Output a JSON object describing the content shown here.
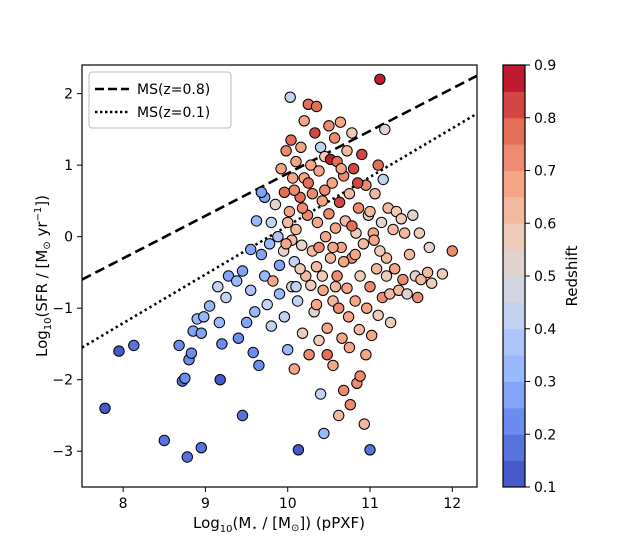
{
  "chart_data": {
    "type": "scatter",
    "title": "",
    "xlabel": "Log10(M★ / [M⊙]) (pPXF)",
    "ylabel": "Log10(SFR / [M⊙ yr−1])",
    "xlabel_parts": {
      "pre": "Log",
      "sub": "10",
      "post": "(M",
      "star": "⋆",
      "mid": " / [M",
      "sun": "⊙",
      "end": "]) (pPXF)"
    },
    "ylabel_parts": {
      "pre": "Log",
      "sub": "10",
      "post": "(SFR / [M",
      "sun": "⊙",
      "mid": " yr",
      "sup": "−1",
      "end": "])"
    },
    "xlim": [
      7.5,
      12.3
    ],
    "ylim": [
      -3.5,
      2.4
    ],
    "xticks": [
      8,
      9,
      10,
      11,
      12
    ],
    "yticks": [
      2,
      1,
      0,
      -1,
      -2,
      -3
    ],
    "xtick_labels": [
      "8",
      "9",
      "10",
      "11",
      "12"
    ],
    "ytick_labels": [
      "2",
      "1",
      "0",
      "−1",
      "−2",
      "−3"
    ],
    "grid": false,
    "legend": {
      "placement": "top-left",
      "entries": [
        {
          "label": "MS(z=0.8)",
          "style": "dashed"
        },
        {
          "label": "MS(z=0.1)",
          "style": "dotted"
        }
      ]
    },
    "lines": [
      {
        "name": "MS(z=0.8)",
        "style": "dashed",
        "x": [
          7.5,
          12.3
        ],
        "y": [
          -0.6,
          2.25
        ]
      },
      {
        "name": "MS(z=0.1)",
        "style": "dotted",
        "x": [
          7.5,
          12.3
        ],
        "y": [
          -1.55,
          1.72
        ]
      }
    ],
    "colorbar": {
      "label": "Redshift",
      "range": [
        0.1,
        0.9
      ],
      "ticks": [
        0.1,
        0.2,
        0.3,
        0.4,
        0.5,
        0.6,
        0.7,
        0.8,
        0.9
      ],
      "tick_labels": [
        "0.1",
        "0.2",
        "0.3",
        "0.4",
        "0.5",
        "0.6",
        "0.7",
        "0.8",
        "0.9"
      ],
      "n_bins": 16,
      "colormap": "coolwarm",
      "color_stops": [
        "#3b4cc0",
        "#6788ee",
        "#9abbff",
        "#c9d7f0",
        "#edd1c2",
        "#f7a889",
        "#e26952",
        "#b40426"
      ]
    },
    "points_note": "Approximate reconstruction of the scatter; values estimated from the figure.",
    "points": [
      [
        7.78,
        -2.4,
        0.13
      ],
      [
        7.95,
        -1.6,
        0.15
      ],
      [
        8.13,
        -1.52,
        0.16
      ],
      [
        8.5,
        -2.85,
        0.18
      ],
      [
        8.68,
        -1.52,
        0.2
      ],
      [
        8.72,
        -2.02,
        0.18
      ],
      [
        8.75,
        -1.98,
        0.22
      ],
      [
        8.78,
        -3.08,
        0.16
      ],
      [
        8.8,
        -1.72,
        0.2
      ],
      [
        8.83,
        -1.63,
        0.2
      ],
      [
        8.95,
        -2.95,
        0.16
      ],
      [
        8.85,
        -1.32,
        0.27
      ],
      [
        8.9,
        -1.15,
        0.35
      ],
      [
        8.95,
        -1.35,
        0.3
      ],
      [
        8.98,
        -1.12,
        0.33
      ],
      [
        9.05,
        -0.97,
        0.35
      ],
      [
        9.15,
        -0.7,
        0.4
      ],
      [
        9.17,
        -1.2,
        0.32
      ],
      [
        9.2,
        -1.5,
        0.2
      ],
      [
        9.18,
        -2.0,
        0.15
      ],
      [
        9.25,
        -0.85,
        0.4
      ],
      [
        9.28,
        -0.55,
        0.3
      ],
      [
        9.38,
        -0.62,
        0.35
      ],
      [
        9.45,
        -0.48,
        0.3
      ],
      [
        9.5,
        -1.2,
        0.3
      ],
      [
        9.45,
        -2.5,
        0.18
      ],
      [
        9.4,
        -1.42,
        0.25
      ],
      [
        9.55,
        -0.18,
        0.3
      ],
      [
        9.55,
        -0.75,
        0.38
      ],
      [
        9.58,
        -1.62,
        0.25
      ],
      [
        9.6,
        -1.05,
        0.35
      ],
      [
        9.62,
        0.22,
        0.35
      ],
      [
        9.65,
        -1.8,
        0.22
      ],
      [
        9.68,
        -0.25,
        0.3
      ],
      [
        9.72,
        0.55,
        0.3
      ],
      [
        9.75,
        -0.95,
        0.4
      ],
      [
        9.78,
        -0.1,
        0.35
      ],
      [
        9.8,
        -1.25,
        0.4
      ],
      [
        9.72,
        -0.55,
        0.35
      ],
      [
        9.68,
        0.62,
        0.3
      ],
      [
        9.82,
        -0.62,
        0.7
      ],
      [
        9.85,
        0.45,
        0.5
      ],
      [
        9.88,
        0.0,
        0.38
      ],
      [
        9.9,
        -0.4,
        0.3
      ],
      [
        9.92,
        0.95,
        0.7
      ],
      [
        9.95,
        -0.2,
        0.5
      ],
      [
        9.96,
        0.62,
        0.75
      ],
      [
        9.98,
        1.2,
        0.72
      ],
      [
        9.96,
        -1.12,
        0.42
      ],
      [
        10.0,
        -1.58,
        0.35
      ],
      [
        10.02,
        0.35,
        0.65
      ],
      [
        10.04,
        1.35,
        0.75
      ],
      [
        10.05,
        -0.7,
        0.5
      ],
      [
        10.03,
        1.95,
        0.4
      ],
      [
        10.06,
        0.82,
        0.7
      ],
      [
        10.08,
        -0.35,
        0.45
      ],
      [
        10.08,
        -1.85,
        0.65
      ],
      [
        10.1,
        0.1,
        0.6
      ],
      [
        10.1,
        1.05,
        0.7
      ],
      [
        10.12,
        -0.9,
        0.45
      ],
      [
        10.13,
        -2.98,
        0.15
      ],
      [
        10.15,
        0.55,
        0.75
      ],
      [
        10.16,
        1.25,
        0.68
      ],
      [
        10.17,
        -0.12,
        0.5
      ],
      [
        10.18,
        -1.35,
        0.55
      ],
      [
        10.2,
        0.82,
        0.7
      ],
      [
        10.2,
        1.62,
        0.7
      ],
      [
        10.22,
        -0.55,
        0.6
      ],
      [
        10.24,
        0.3,
        0.72
      ],
      [
        10.25,
        1.85,
        0.75
      ],
      [
        10.26,
        -1.65,
        0.72
      ],
      [
        10.28,
        1.0,
        0.7
      ],
      [
        10.3,
        -0.2,
        0.62
      ],
      [
        10.3,
        0.6,
        0.72
      ],
      [
        10.32,
        -1.05,
        0.5
      ],
      [
        10.33,
        1.45,
        0.8
      ],
      [
        10.35,
        1.82,
        0.75
      ],
      [
        10.35,
        -0.42,
        0.6
      ],
      [
        10.36,
        0.2,
        0.7
      ],
      [
        10.38,
        0.92,
        0.7
      ],
      [
        10.38,
        -1.45,
        0.55
      ],
      [
        10.4,
        -2.2,
        0.45
      ],
      [
        10.4,
        1.25,
        0.45
      ],
      [
        10.42,
        0.5,
        0.65
      ],
      [
        10.43,
        -0.75,
        0.68
      ],
      [
        10.44,
        -2.75,
        0.35
      ],
      [
        10.45,
        1.12,
        0.55
      ],
      [
        10.46,
        0.0,
        0.7
      ],
      [
        10.48,
        -1.28,
        0.7
      ],
      [
        10.5,
        0.32,
        0.72
      ],
      [
        10.5,
        1.55,
        0.72
      ],
      [
        10.52,
        -0.3,
        0.62
      ],
      [
        10.52,
        1.08,
        0.88
      ],
      [
        10.54,
        0.75,
        0.7
      ],
      [
        10.55,
        -0.9,
        0.6
      ],
      [
        10.55,
        -1.8,
        0.7
      ],
      [
        10.57,
        1.38,
        0.72
      ],
      [
        10.58,
        0.12,
        0.7
      ],
      [
        10.6,
        -0.55,
        0.72
      ],
      [
        10.6,
        1.05,
        0.75
      ],
      [
        10.62,
        -2.5,
        0.6
      ],
      [
        10.63,
        0.48,
        0.8
      ],
      [
        10.64,
        1.6,
        0.7
      ],
      [
        10.65,
        -0.15,
        0.68
      ],
      [
        10.66,
        -1.42,
        0.7
      ],
      [
        10.68,
        0.85,
        0.72
      ],
      [
        10.68,
        -2.15,
        0.72
      ],
      [
        10.7,
        0.22,
        0.62
      ],
      [
        10.72,
        -0.72,
        0.7
      ],
      [
        10.72,
        1.2,
        0.6
      ],
      [
        10.74,
        -1.12,
        0.65
      ],
      [
        10.75,
        0.6,
        0.6
      ],
      [
        10.76,
        -2.35,
        0.72
      ],
      [
        10.78,
        -0.3,
        0.72
      ],
      [
        10.78,
        1.45,
        0.55
      ],
      [
        10.8,
        0.95,
        0.8
      ],
      [
        10.82,
        -0.9,
        0.65
      ],
      [
        10.83,
        0.05,
        0.55
      ],
      [
        10.84,
        -2.05,
        0.72
      ],
      [
        10.86,
        0.4,
        0.72
      ],
      [
        10.87,
        -1.3,
        0.62
      ],
      [
        10.88,
        -0.55,
        0.55
      ],
      [
        10.9,
        1.15,
        0.8
      ],
      [
        10.92,
        -0.1,
        0.6
      ],
      [
        10.93,
        -2.62,
        0.6
      ],
      [
        10.95,
        0.72,
        0.72
      ],
      [
        10.96,
        -1.0,
        0.7
      ],
      [
        10.98,
        0.3,
        0.5
      ],
      [
        11.0,
        -0.7,
        0.72
      ],
      [
        11.0,
        -2.98,
        0.18
      ],
      [
        11.02,
        -1.38,
        0.68
      ],
      [
        11.04,
        0.05,
        0.7
      ],
      [
        11.06,
        0.6,
        0.62
      ],
      [
        11.08,
        -0.45,
        0.6
      ],
      [
        11.1,
        1.0,
        0.75
      ],
      [
        11.1,
        -1.1,
        0.55
      ],
      [
        11.12,
        2.2,
        0.9
      ],
      [
        11.14,
        0.2,
        0.5
      ],
      [
        11.15,
        -0.85,
        0.72
      ],
      [
        11.16,
        0.8,
        0.45
      ],
      [
        11.18,
        1.5,
        0.5
      ],
      [
        11.2,
        -0.3,
        0.62
      ],
      [
        11.2,
        -0.55,
        0.55
      ],
      [
        11.22,
        0.4,
        0.62
      ],
      [
        11.24,
        -0.8,
        0.6
      ],
      [
        11.25,
        -1.2,
        0.55
      ],
      [
        11.28,
        0.1,
        0.6
      ],
      [
        11.3,
        -0.45,
        0.7
      ],
      [
        11.32,
        0.35,
        0.55
      ],
      [
        11.35,
        -0.75,
        0.6
      ],
      [
        11.38,
        0.25,
        0.55
      ],
      [
        11.4,
        -0.6,
        0.72
      ],
      [
        11.42,
        0.05,
        0.6
      ],
      [
        11.45,
        -0.8,
        0.5
      ],
      [
        11.48,
        -0.25,
        0.62
      ],
      [
        11.52,
        0.3,
        0.5
      ],
      [
        11.55,
        -0.55,
        0.5
      ],
      [
        11.58,
        -0.85,
        0.72
      ],
      [
        11.6,
        0.05,
        0.55
      ],
      [
        11.62,
        -0.6,
        0.6
      ],
      [
        11.7,
        -0.5,
        0.6
      ],
      [
        11.72,
        -0.15,
        0.5
      ],
      [
        11.75,
        -0.65,
        0.55
      ],
      [
        11.88,
        -0.52,
        0.55
      ],
      [
        12.0,
        -0.2,
        0.72
      ],
      [
        10.0,
        0.2,
        0.6
      ],
      [
        10.15,
        -0.45,
        0.55
      ],
      [
        10.25,
        0.75,
        0.78
      ],
      [
        10.35,
        -0.95,
        0.65
      ],
      [
        10.45,
        0.65,
        0.72
      ],
      [
        10.55,
        -0.15,
        0.68
      ],
      [
        10.65,
        0.95,
        0.7
      ],
      [
        10.75,
        -1.55,
        0.7
      ],
      [
        10.85,
        0.75,
        0.8
      ],
      [
        10.95,
        -1.65,
        0.7
      ],
      [
        10.1,
        -0.7,
        0.4
      ],
      [
        9.9,
        -0.8,
        0.35
      ],
      [
        9.8,
        0.2,
        0.4
      ],
      [
        10.05,
        -0.05,
        0.62
      ],
      [
        10.28,
        -0.68,
        0.58
      ],
      [
        10.48,
        -1.65,
        0.75
      ],
      [
        10.62,
        -1.0,
        0.72
      ],
      [
        10.82,
        -0.25,
        0.7
      ],
      [
        11.05,
        -0.05,
        0.65
      ],
      [
        10.38,
        -0.15,
        0.72
      ],
      [
        10.18,
        0.4,
        0.72
      ],
      [
        10.68,
        -0.35,
        0.68
      ],
      [
        10.88,
        -1.95,
        0.72
      ],
      [
        10.58,
        -0.7,
        0.62
      ],
      [
        10.08,
        0.65,
        0.72
      ],
      [
        9.98,
        -0.1,
        0.68
      ],
      [
        10.42,
        -0.55,
        0.55
      ],
      [
        10.78,
        0.15,
        0.78
      ],
      [
        11.0,
        0.35,
        0.62
      ],
      [
        11.12,
        -0.2,
        0.58
      ]
    ]
  }
}
